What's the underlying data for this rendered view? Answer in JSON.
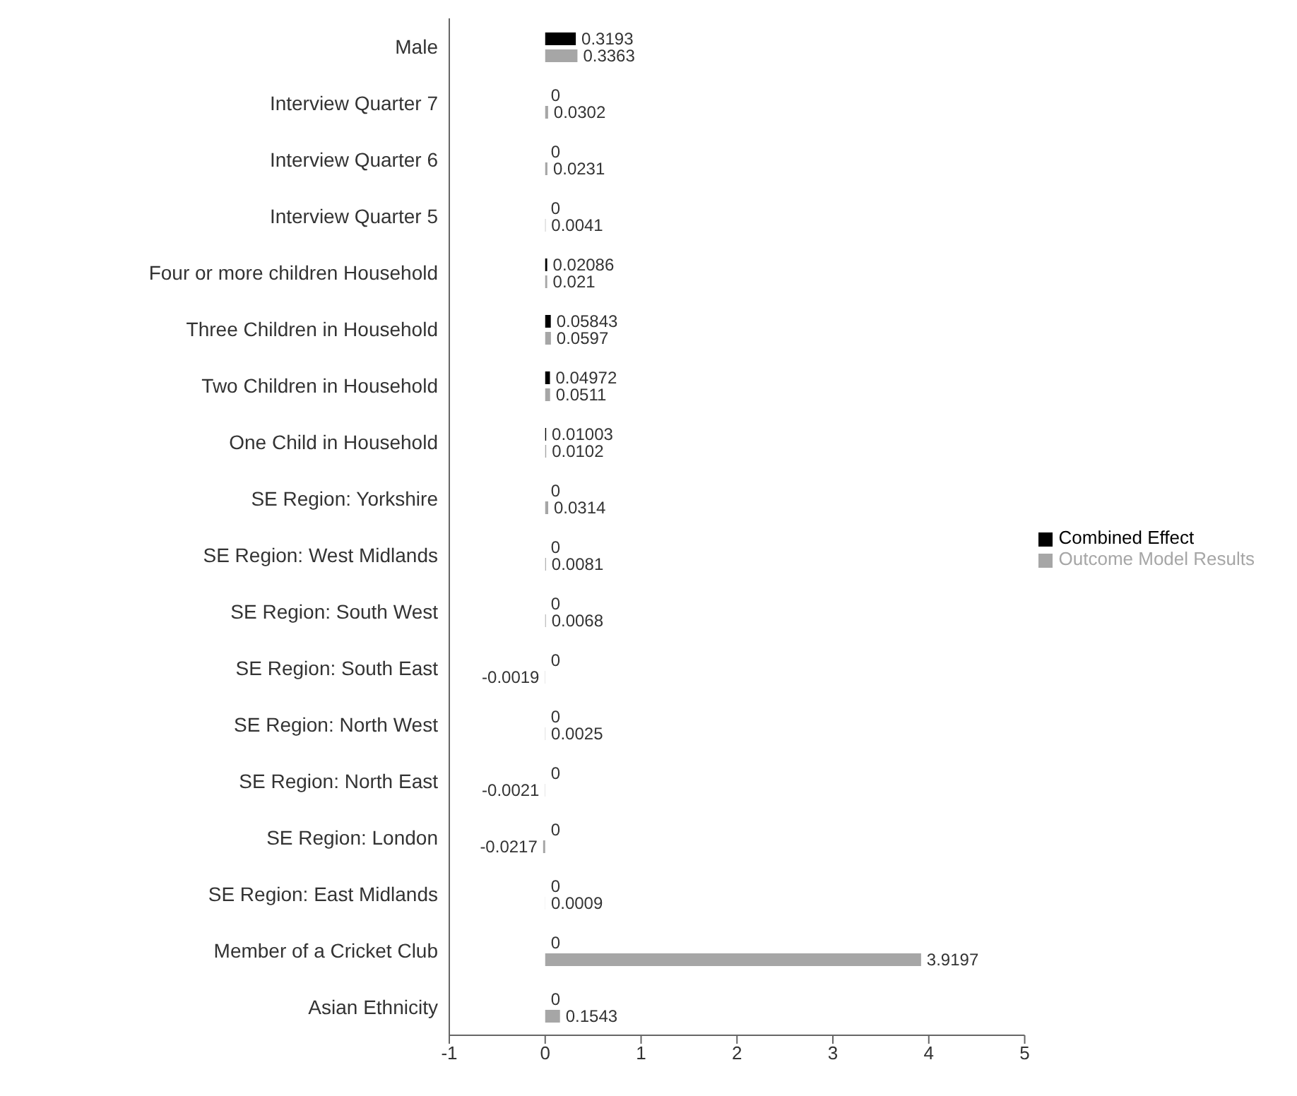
{
  "chart_data": {
    "type": "bar",
    "orientation": "horizontal",
    "categories": [
      "Male",
      "Interview Quarter 7",
      "Interview Quarter 6",
      "Interview Quarter 5",
      "Four or more children Household",
      "Three Children in Household",
      "Two Children in Household",
      "One Child in Household",
      "SE Region: Yorkshire",
      "SE Region: West Midlands",
      "SE Region: South West",
      "SE Region: South East",
      "SE Region: North West",
      "SE Region: North East",
      "SE Region: London",
      "SE Region: East Midlands",
      "Member of a Cricket Club",
      "Asian Ethnicity"
    ],
    "series": [
      {
        "name": "Combined Effect",
        "color": "#000000",
        "values": [
          0.3193,
          0,
          0,
          0,
          0.02086,
          0.05843,
          0.04972,
          0.01003,
          0,
          0,
          0,
          0,
          0,
          0,
          0,
          0,
          0,
          0
        ]
      },
      {
        "name": "Outcome Model Results",
        "color": "#a6a6a6",
        "values": [
          0.3363,
          0.0302,
          0.0231,
          0.0041,
          0.021,
          0.0597,
          0.0511,
          0.0102,
          0.0314,
          0.0081,
          0.0068,
          -0.0019,
          0.0025,
          -0.0021,
          -0.0217,
          0.0009,
          3.9197,
          0.1543
        ]
      }
    ],
    "xlim": [
      -1,
      5
    ],
    "xticks": [
      -1,
      0,
      1,
      2,
      3,
      4,
      5
    ],
    "data_labels": true,
    "legend": "right",
    "grid": false
  }
}
